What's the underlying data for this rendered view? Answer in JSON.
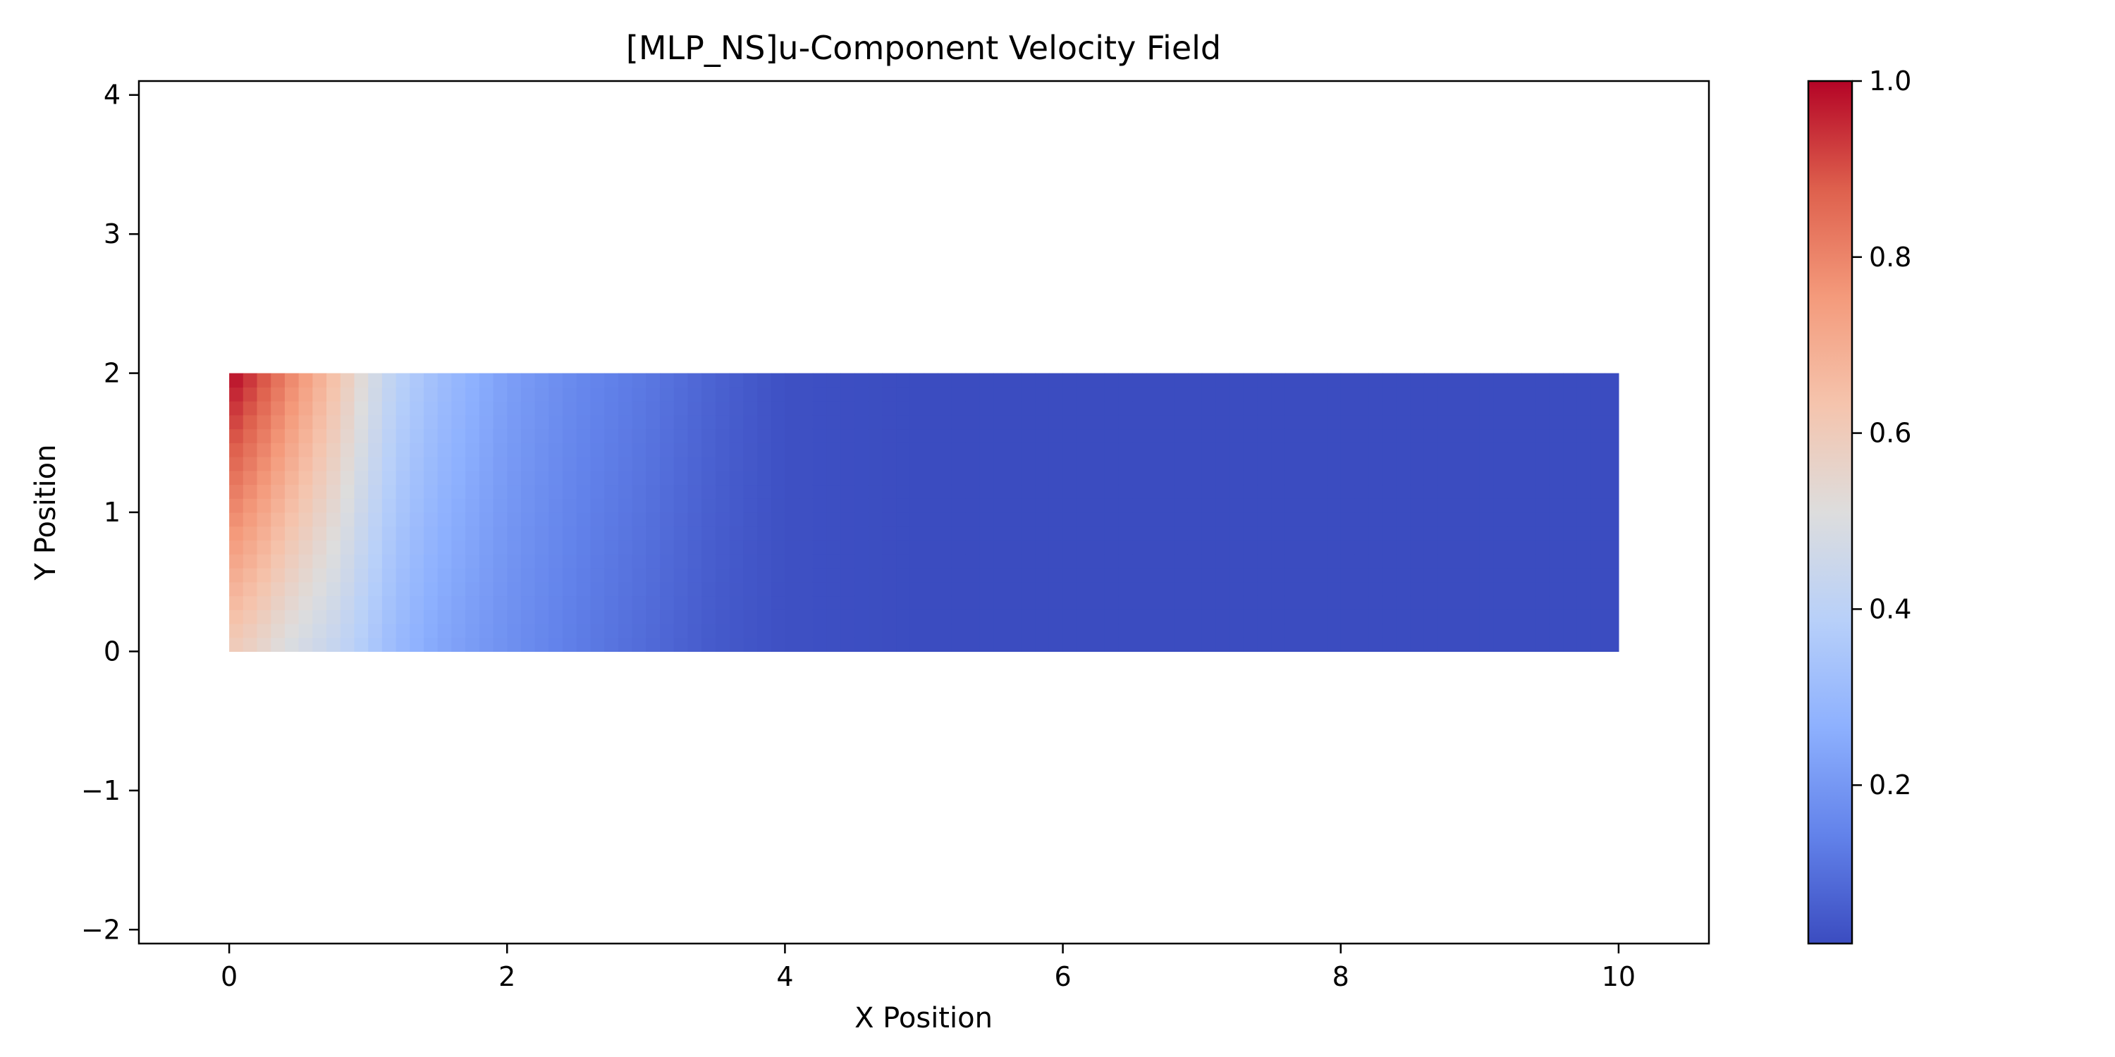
{
  "chart_data": {
    "type": "heatmap",
    "title": "[MLP_NS]u-Component Velocity Field",
    "xlabel": "X Position",
    "ylabel": "Y Position",
    "xlim": [
      -0.65,
      10.65
    ],
    "ylim": [
      -2.1,
      4.1
    ],
    "x_ticks": [
      0,
      2,
      4,
      6,
      8,
      10
    ],
    "y_ticks": [
      -2,
      -1,
      0,
      1,
      2,
      3,
      4
    ],
    "x_tick_labels": [
      "0",
      "2",
      "4",
      "6",
      "8",
      "10"
    ],
    "y_tick_labels": [
      "−2",
      "−1",
      "0",
      "1",
      "2",
      "3",
      "4"
    ],
    "grid": false,
    "colormap": "coolwarm",
    "domain": {
      "x": [
        0,
        10
      ],
      "y": [
        0,
        2
      ]
    },
    "grid_cells": {
      "nx": 100,
      "ny": 20
    },
    "field_profile": {
      "description": "u decays from inlet (x=0) toward outlet; larger near top wall",
      "x_samples": [
        0,
        0.2,
        0.4,
        0.6,
        0.8,
        1.0,
        1.2,
        1.5,
        2.0,
        2.5,
        3.0,
        3.5,
        4.0,
        5.0,
        10.0
      ],
      "u_at_top": [
        1.0,
        0.92,
        0.82,
        0.72,
        0.62,
        0.5,
        0.4,
        0.32,
        0.22,
        0.16,
        0.12,
        0.07,
        0.03,
        0.02,
        0.02
      ],
      "u_at_bottom": [
        0.6,
        0.56,
        0.5,
        0.46,
        0.42,
        0.36,
        0.3,
        0.24,
        0.18,
        0.13,
        0.09,
        0.05,
        0.03,
        0.02,
        0.02
      ]
    },
    "colorbar": {
      "min": 0.02,
      "max": 1.0,
      "ticks": [
        0.2,
        0.4,
        0.6,
        0.8,
        1.0
      ],
      "tick_labels": [
        "0.2",
        "0.4",
        "0.6",
        "0.8",
        "1.0"
      ]
    }
  }
}
